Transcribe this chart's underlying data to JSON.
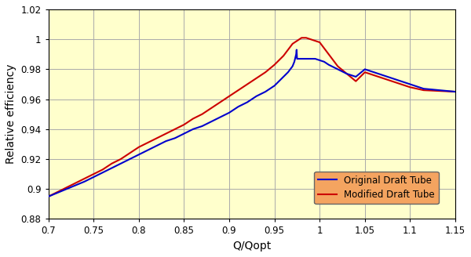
{
  "title": "",
  "xlabel": "Q/Qopt",
  "ylabel": "Relative efficiency",
  "xlim": [
    0.7,
    1.15
  ],
  "ylim": [
    0.88,
    1.02
  ],
  "xticks": [
    0.7,
    0.75,
    0.8,
    0.85,
    0.9,
    0.95,
    1.0,
    1.05,
    1.1,
    1.15
  ],
  "yticks": [
    0.88,
    0.9,
    0.92,
    0.94,
    0.96,
    0.98,
    1.0,
    1.02
  ],
  "background_color": "#ffffcc",
  "grid_color": "#aaaaaa",
  "legend_facecolor": "#f4a460",
  "blue_line": {
    "x": [
      0.7,
      0.72,
      0.74,
      0.75,
      0.76,
      0.77,
      0.78,
      0.79,
      0.8,
      0.81,
      0.82,
      0.83,
      0.84,
      0.85,
      0.86,
      0.87,
      0.88,
      0.89,
      0.9,
      0.91,
      0.92,
      0.93,
      0.94,
      0.95,
      0.96,
      0.965,
      0.97,
      0.972,
      0.974,
      0.9745,
      0.975,
      0.976,
      0.978,
      0.98,
      0.982,
      0.984,
      0.986,
      0.988,
      0.99,
      0.995,
      1.0,
      1.005,
      1.01,
      1.02,
      1.03,
      1.04,
      1.05,
      1.06,
      1.07,
      1.08,
      1.09,
      1.1,
      1.115,
      1.15
    ],
    "y": [
      0.895,
      0.9,
      0.905,
      0.908,
      0.911,
      0.914,
      0.917,
      0.92,
      0.923,
      0.926,
      0.929,
      0.932,
      0.934,
      0.937,
      0.94,
      0.942,
      0.945,
      0.948,
      0.951,
      0.955,
      0.958,
      0.962,
      0.965,
      0.969,
      0.975,
      0.978,
      0.982,
      0.985,
      0.99,
      0.993,
      0.987,
      0.987,
      0.987,
      0.987,
      0.987,
      0.987,
      0.987,
      0.987,
      0.987,
      0.987,
      0.986,
      0.985,
      0.983,
      0.98,
      0.977,
      0.975,
      0.98,
      0.978,
      0.976,
      0.974,
      0.972,
      0.97,
      0.967,
      0.965
    ],
    "color": "#0000cc",
    "linewidth": 1.5,
    "label": "Original Draft Tube"
  },
  "red_line": {
    "x": [
      0.7,
      0.72,
      0.74,
      0.75,
      0.76,
      0.77,
      0.78,
      0.79,
      0.8,
      0.81,
      0.82,
      0.83,
      0.84,
      0.85,
      0.86,
      0.87,
      0.88,
      0.89,
      0.9,
      0.91,
      0.92,
      0.93,
      0.94,
      0.95,
      0.96,
      0.965,
      0.97,
      0.975,
      0.98,
      0.985,
      0.99,
      0.995,
      1.0,
      1.005,
      1.01,
      1.015,
      1.02,
      1.03,
      1.04,
      1.05,
      1.06,
      1.07,
      1.08,
      1.09,
      1.1,
      1.115,
      1.15
    ],
    "y": [
      0.895,
      0.901,
      0.907,
      0.91,
      0.913,
      0.917,
      0.92,
      0.924,
      0.928,
      0.931,
      0.934,
      0.937,
      0.94,
      0.943,
      0.947,
      0.95,
      0.954,
      0.958,
      0.962,
      0.966,
      0.97,
      0.974,
      0.978,
      0.983,
      0.989,
      0.993,
      0.997,
      0.999,
      1.001,
      1.001,
      1.0,
      0.999,
      0.998,
      0.994,
      0.99,
      0.986,
      0.982,
      0.977,
      0.972,
      0.978,
      0.976,
      0.974,
      0.972,
      0.97,
      0.968,
      0.966,
      0.965
    ],
    "color": "#cc0000",
    "linewidth": 1.5,
    "label": "Modified Draft Tube"
  }
}
